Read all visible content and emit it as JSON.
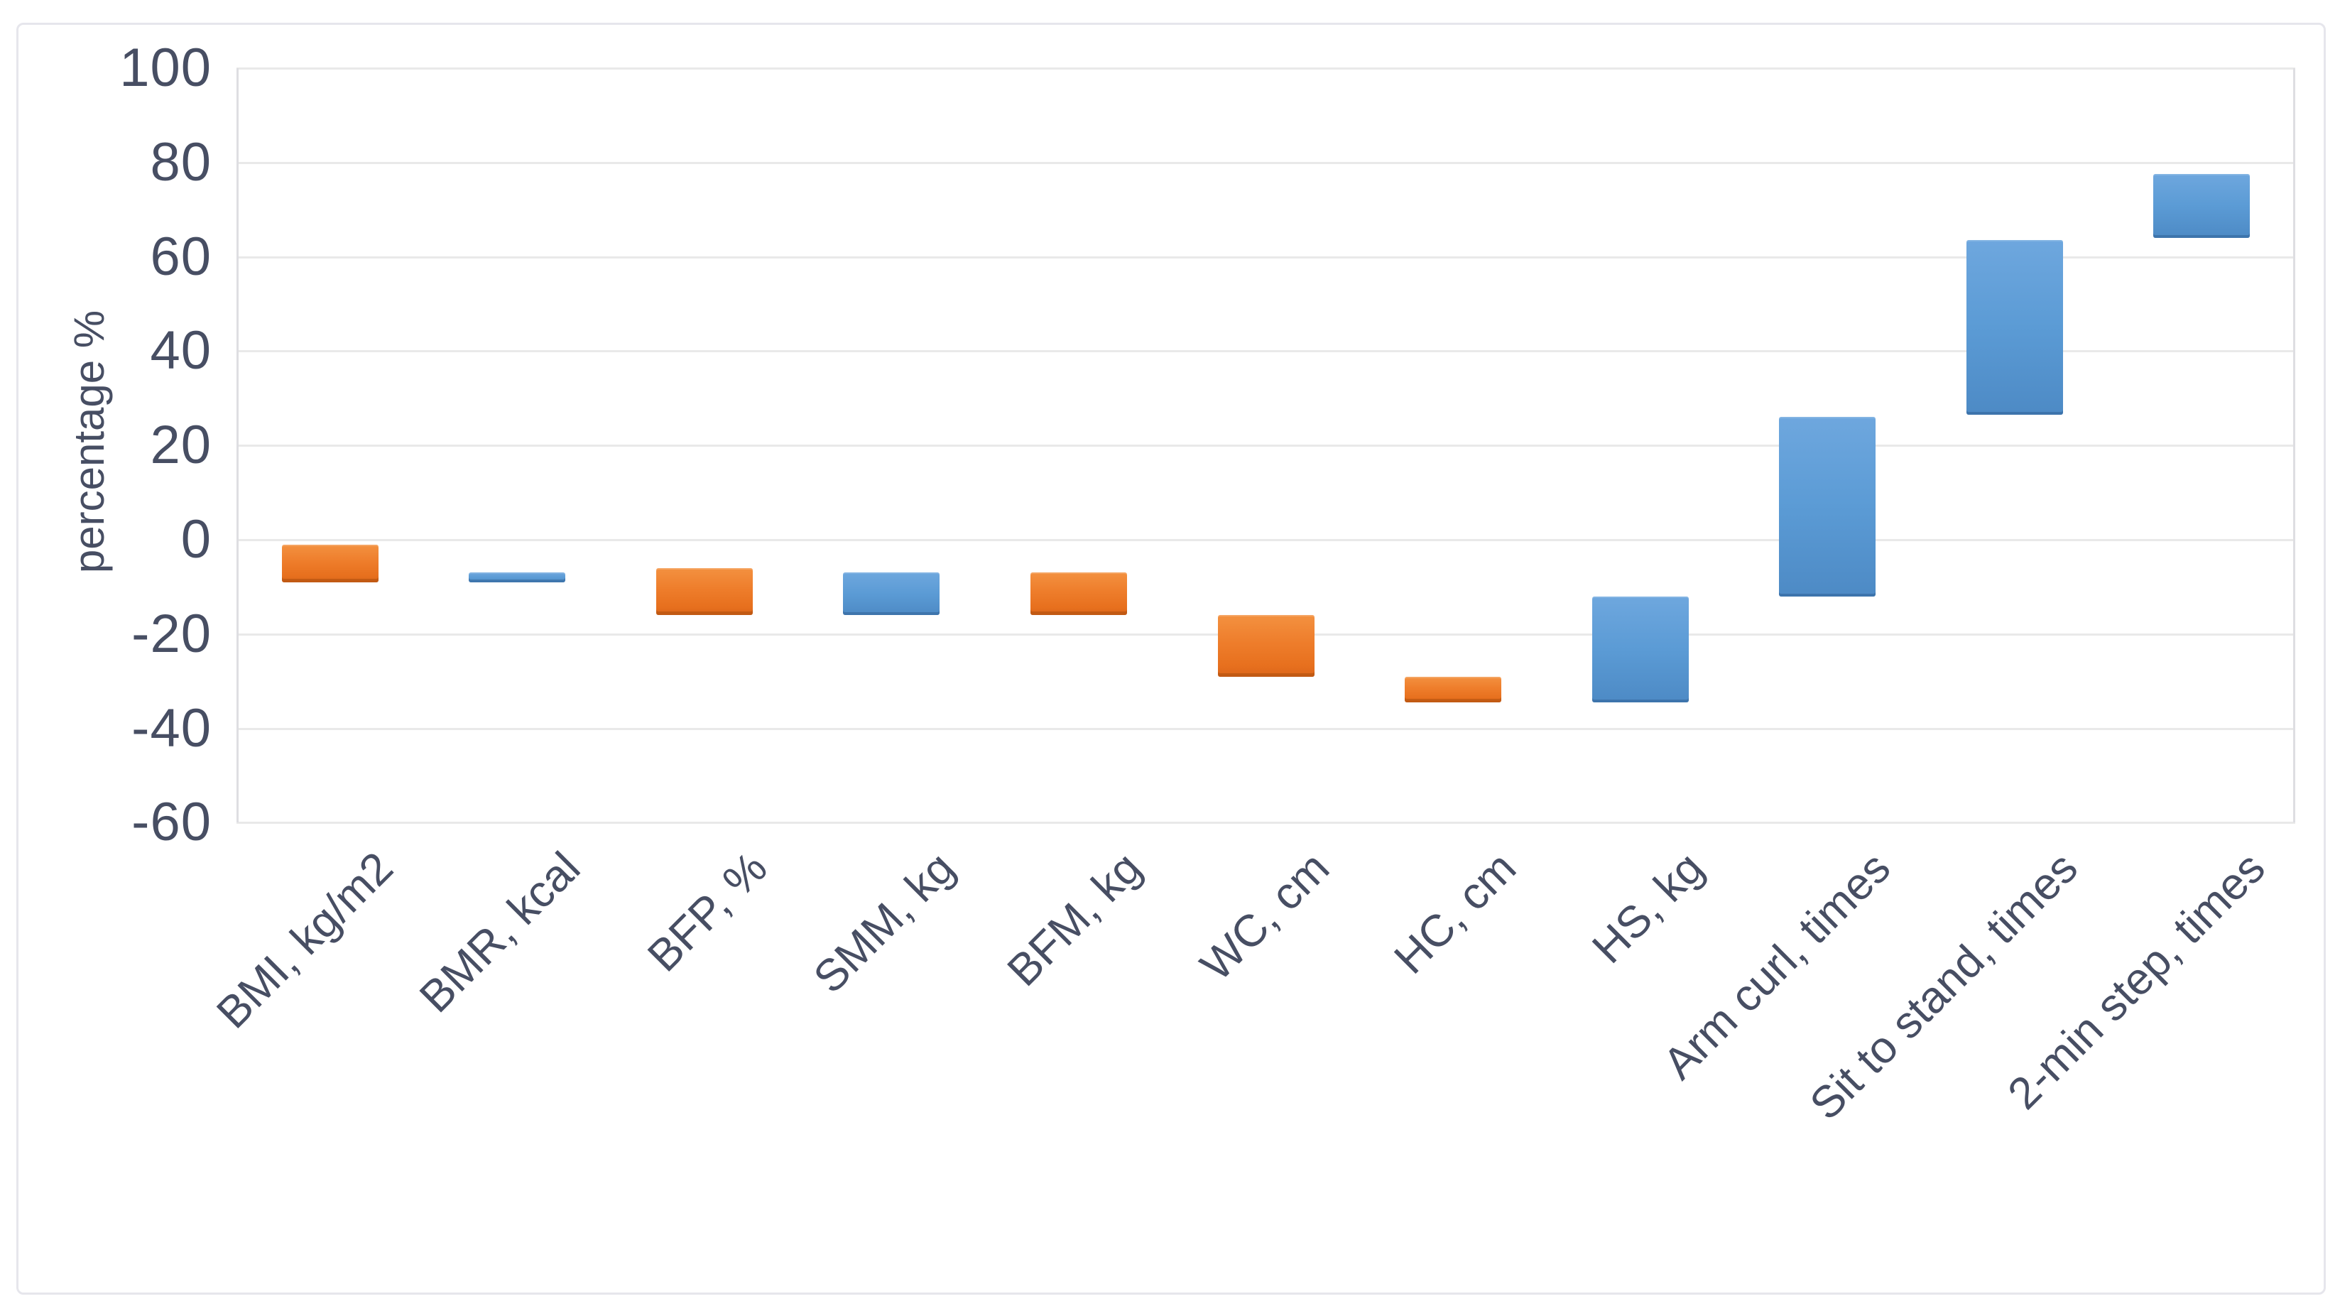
{
  "figure": {
    "background": "#ffffff",
    "border_color": "#e6e6ec"
  },
  "chart_data": {
    "type": "bar",
    "subtype": "floating-range-column",
    "title": "",
    "xlabel": "",
    "ylabel": "percentage %",
    "ylim": [
      -60,
      100
    ],
    "ytick_interval": 20,
    "yticks": [
      100,
      80,
      60,
      40,
      20,
      0,
      -20,
      -40,
      -60
    ],
    "grid": "horizontal",
    "legend": "none",
    "colors": {
      "orange": "#ED7D31",
      "blue": "#5B9BD5"
    },
    "categories": [
      "BMI, kg/m2",
      "BMR, kcal",
      "BFP, %",
      "SMM, kg",
      "BFM, kg",
      "WC, cm",
      "HC, cm",
      "HS, kg",
      "Arm curl, times",
      "Sit to stand, times",
      "2-min step, times"
    ],
    "bars": [
      {
        "category": "BMI, kg/m2",
        "low": -9,
        "high": -1,
        "color": "orange"
      },
      {
        "category": "BMR, kcal",
        "low": -9,
        "high": -7,
        "color": "blue"
      },
      {
        "category": "BFP, %",
        "low": -16,
        "high": -6,
        "color": "orange"
      },
      {
        "category": "SMM, kg",
        "low": -16,
        "high": -7,
        "color": "blue"
      },
      {
        "category": "BFM, kg",
        "low": -16,
        "high": -7,
        "color": "orange"
      },
      {
        "category": "WC, cm",
        "low": -29,
        "high": -16,
        "color": "orange"
      },
      {
        "category": "HC, cm",
        "low": -34.5,
        "high": -29,
        "color": "orange"
      },
      {
        "category": "HS, kg",
        "low": -34.5,
        "high": -12,
        "color": "blue"
      },
      {
        "category": "Arm curl, times",
        "low": -12,
        "high": 26,
        "color": "blue"
      },
      {
        "category": "Sit to stand, times",
        "low": 26.5,
        "high": 63.5,
        "color": "blue"
      },
      {
        "category": "2-min step, times",
        "low": 64,
        "high": 77.5,
        "color": "blue"
      }
    ]
  }
}
